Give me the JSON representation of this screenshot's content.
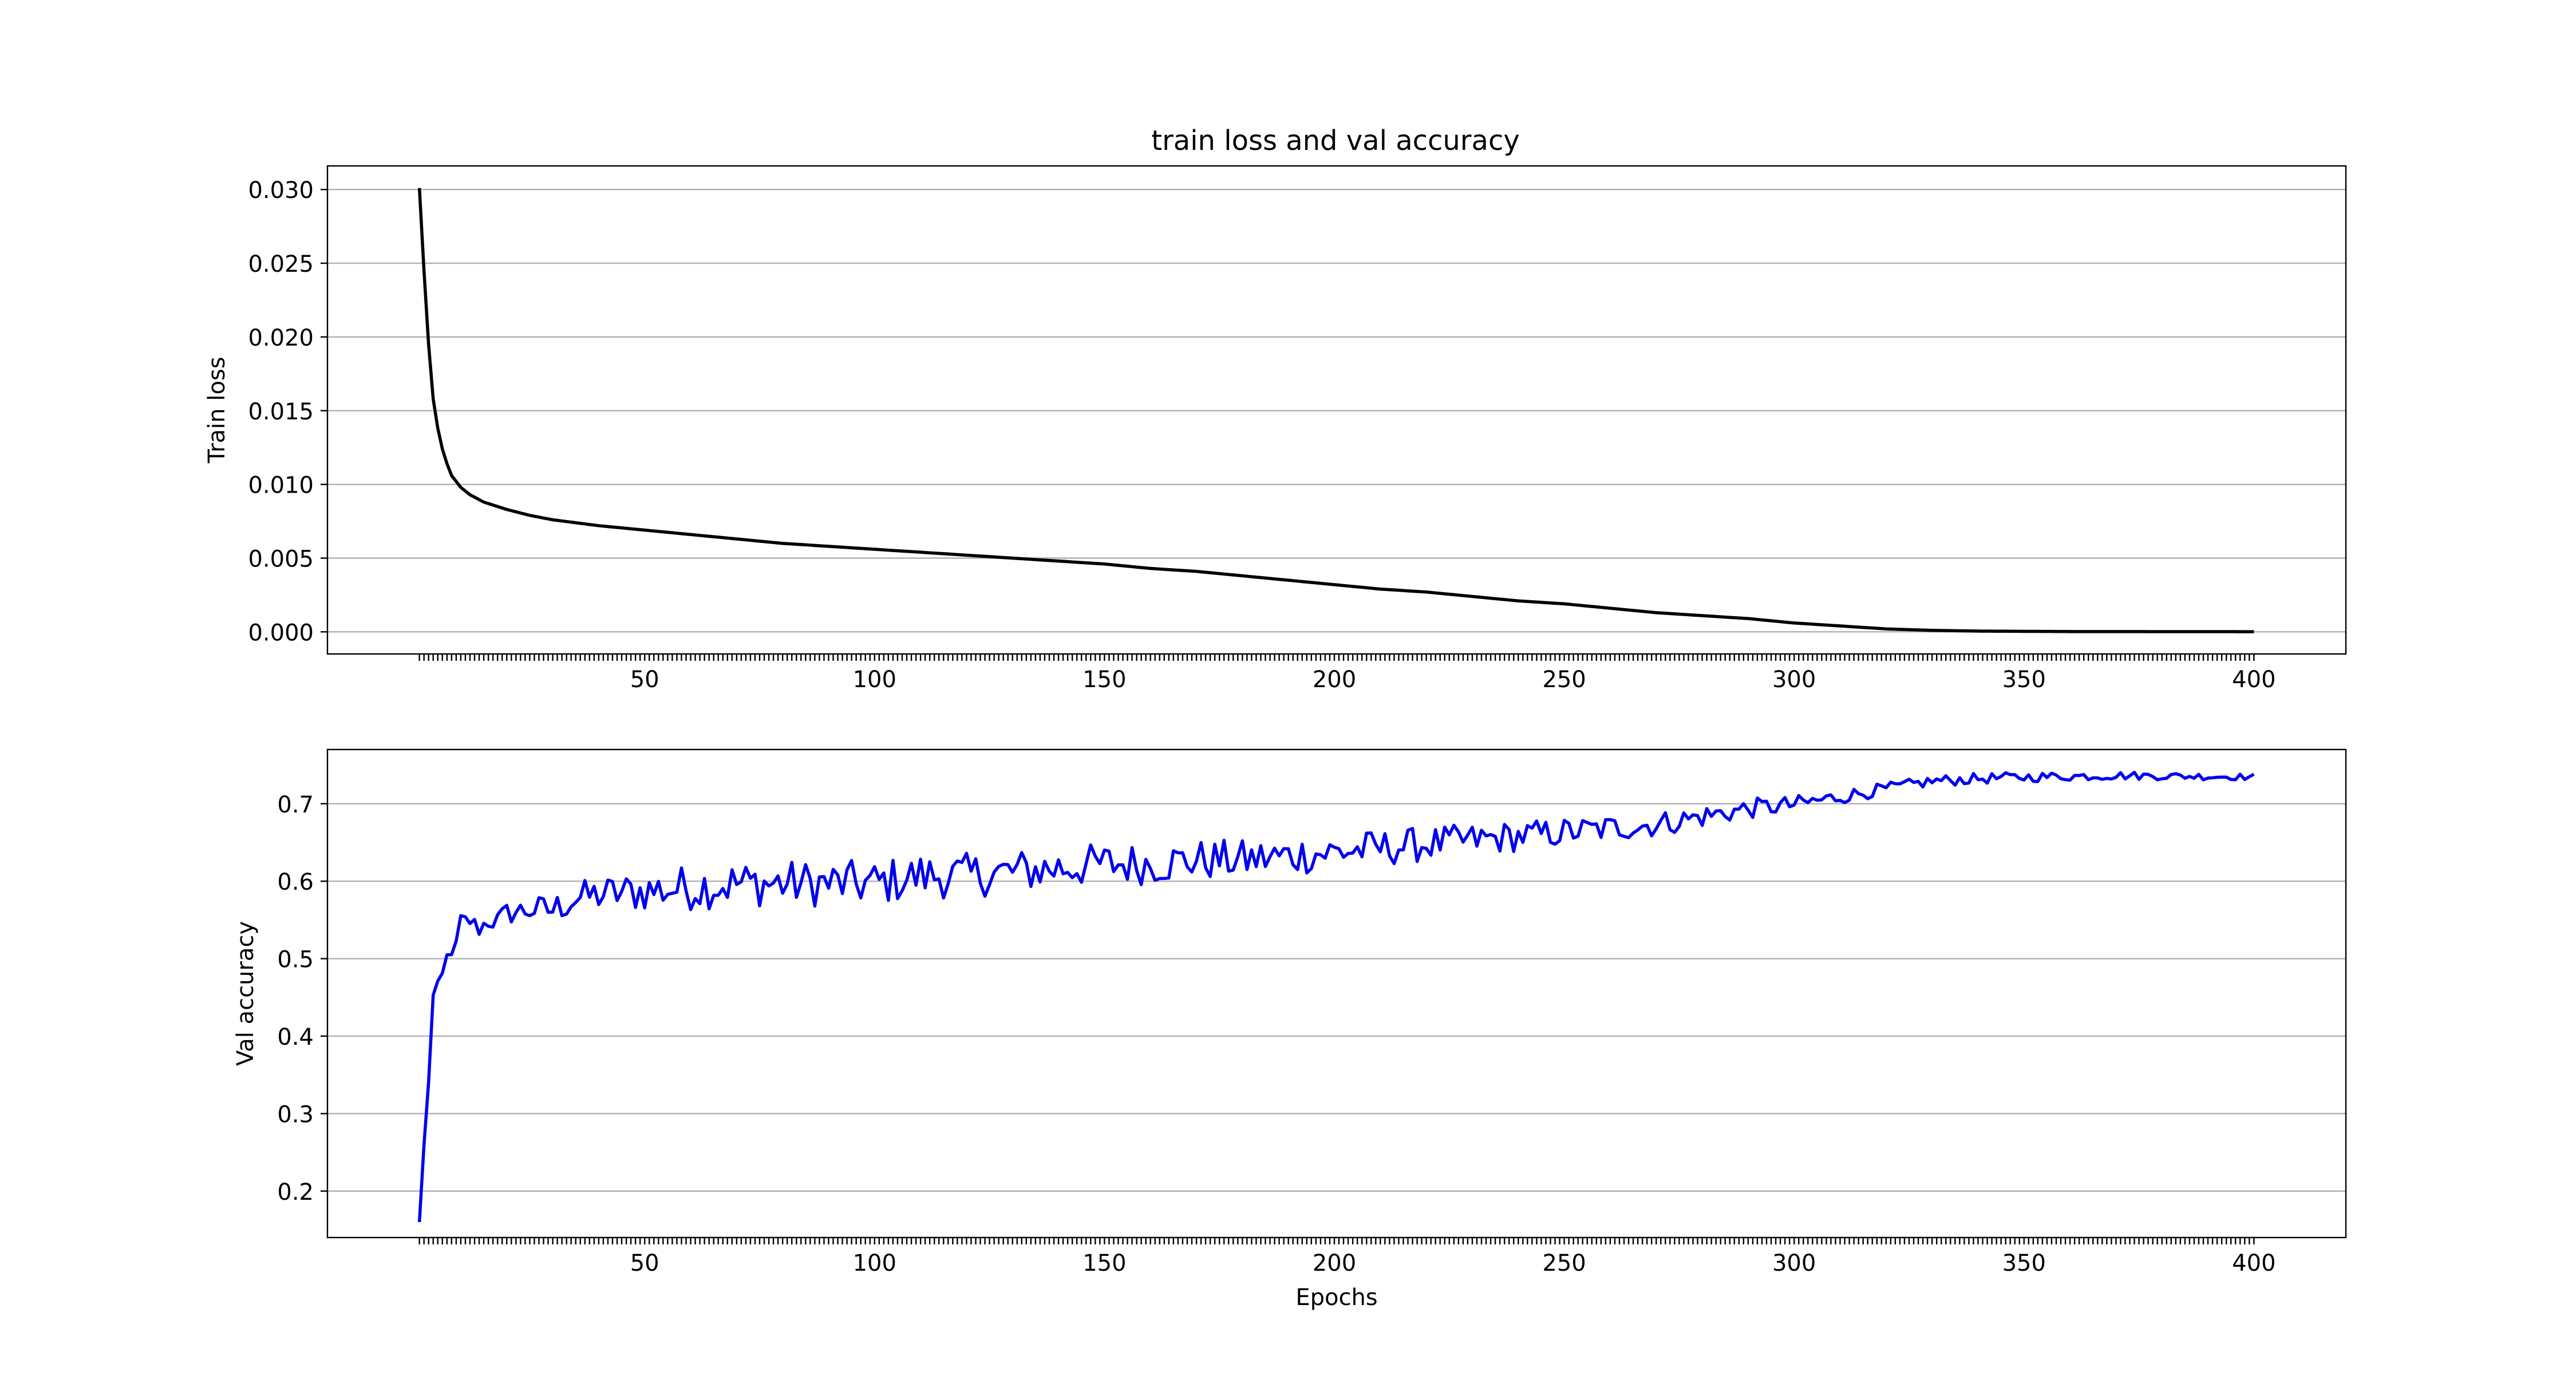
{
  "title": "train loss and val accuracy",
  "chart_data": [
    {
      "type": "line",
      "ylabel": "Train loss",
      "xlabel": "",
      "xlim": [
        -19,
        420
      ],
      "ylim": [
        -0.0015,
        0.0316
      ],
      "x_ticks": [
        50,
        100,
        150,
        200,
        250,
        300,
        350,
        400
      ],
      "x_tick_labels": [
        "50",
        "100",
        "150",
        "200",
        "250",
        "300",
        "350",
        "400"
      ],
      "y_ticks": [
        0.0,
        0.005,
        0.01,
        0.015,
        0.02,
        0.025,
        0.03
      ],
      "y_tick_labels": [
        "0.000",
        "0.005",
        "0.010",
        "0.015",
        "0.020",
        "0.025",
        "0.030"
      ],
      "grid": "horizontal",
      "series": [
        {
          "color": "#000000",
          "x_start": 1,
          "x_end": 400,
          "points": [
            [
              1,
              0.0301
            ],
            [
              2,
              0.0245
            ],
            [
              3,
              0.0195
            ],
            [
              4,
              0.0158
            ],
            [
              5,
              0.0138
            ],
            [
              6,
              0.0124
            ],
            [
              7,
              0.0114
            ],
            [
              8,
              0.0106
            ],
            [
              10,
              0.0098
            ],
            [
              12,
              0.0093
            ],
            [
              15,
              0.0088
            ],
            [
              20,
              0.0083
            ],
            [
              25,
              0.0079
            ],
            [
              30,
              0.0076
            ],
            [
              35,
              0.0074
            ],
            [
              40,
              0.0072
            ],
            [
              50,
              0.0069
            ],
            [
              60,
              0.0066
            ],
            [
              70,
              0.0063
            ],
            [
              80,
              0.006
            ],
            [
              90,
              0.0058
            ],
            [
              100,
              0.0056
            ],
            [
              110,
              0.0054
            ],
            [
              120,
              0.0052
            ],
            [
              130,
              0.005
            ],
            [
              140,
              0.0048
            ],
            [
              150,
              0.0046
            ],
            [
              160,
              0.0043
            ],
            [
              170,
              0.0041
            ],
            [
              180,
              0.0038
            ],
            [
              190,
              0.0035
            ],
            [
              200,
              0.0032
            ],
            [
              210,
              0.0029
            ],
            [
              220,
              0.0027
            ],
            [
              230,
              0.0024
            ],
            [
              240,
              0.0021
            ],
            [
              250,
              0.0019
            ],
            [
              260,
              0.0016
            ],
            [
              270,
              0.0013
            ],
            [
              280,
              0.0011
            ],
            [
              290,
              0.0009
            ],
            [
              300,
              0.0006
            ],
            [
              310,
              0.0004
            ],
            [
              320,
              0.0002
            ],
            [
              330,
              0.0001
            ],
            [
              340,
              5e-05
            ],
            [
              360,
              2e-05
            ],
            [
              400,
              1e-05
            ]
          ]
        }
      ]
    },
    {
      "type": "line",
      "ylabel": "Val accuracy",
      "xlabel": "Epochs",
      "xlim": [
        -19,
        420
      ],
      "ylim": [
        0.14,
        0.77
      ],
      "x_ticks": [
        50,
        100,
        150,
        200,
        250,
        300,
        350,
        400
      ],
      "x_tick_labels": [
        "50",
        "100",
        "150",
        "200",
        "250",
        "300",
        "350",
        "400"
      ],
      "y_ticks": [
        0.2,
        0.3,
        0.4,
        0.5,
        0.6,
        0.7
      ],
      "y_tick_labels": [
        "0.2",
        "0.3",
        "0.4",
        "0.5",
        "0.6",
        "0.7"
      ],
      "grid": "horizontal",
      "series": [
        {
          "color": "#0000ee",
          "x_start": 1,
          "x_end": 400,
          "points": [
            [
              1,
              0.16
            ],
            [
              2,
              0.26
            ],
            [
              3,
              0.34
            ],
            [
              4,
              0.45
            ],
            [
              5,
              0.47
            ],
            [
              6,
              0.48
            ],
            [
              7,
              0.51
            ],
            [
              8,
              0.5
            ],
            [
              9,
              0.52
            ],
            [
              10,
              0.55
            ],
            [
              12,
              0.55
            ],
            [
              14,
              0.54
            ],
            [
              16,
              0.55
            ],
            [
              18,
              0.55
            ],
            [
              20,
              0.56
            ],
            [
              25,
              0.565
            ],
            [
              30,
              0.565
            ],
            [
              35,
              0.58
            ],
            [
              40,
              0.585
            ],
            [
              50,
              0.59
            ],
            [
              60,
              0.595
            ],
            [
              70,
              0.6
            ],
            [
              80,
              0.6
            ],
            [
              90,
              0.6
            ],
            [
              100,
              0.6
            ],
            [
              110,
              0.61
            ],
            [
              120,
              0.61
            ],
            [
              130,
              0.615
            ],
            [
              140,
              0.62
            ],
            [
              150,
              0.625
            ],
            [
              160,
              0.625
            ],
            [
              170,
              0.63
            ],
            [
              180,
              0.63
            ],
            [
              190,
              0.635
            ],
            [
              200,
              0.64
            ],
            [
              210,
              0.645
            ],
            [
              220,
              0.65
            ],
            [
              230,
              0.655
            ],
            [
              240,
              0.66
            ],
            [
              250,
              0.665
            ],
            [
              260,
              0.67
            ],
            [
              270,
              0.675
            ],
            [
              280,
              0.685
            ],
            [
              290,
              0.695
            ],
            [
              300,
              0.7
            ],
            [
              310,
              0.71
            ],
            [
              320,
              0.72
            ],
            [
              330,
              0.73
            ],
            [
              340,
              0.733
            ],
            [
              350,
              0.735
            ],
            [
              370,
              0.737
            ],
            [
              400,
              0.735
            ]
          ],
          "noise_amplitude": [
            [
              1,
              0.0
            ],
            [
              10,
              0.01
            ],
            [
              30,
              0.02
            ],
            [
              60,
              0.03
            ],
            [
              100,
              0.03
            ],
            [
              200,
              0.025
            ],
            [
              280,
              0.015
            ],
            [
              320,
              0.008
            ],
            [
              400,
              0.004
            ]
          ]
        }
      ]
    }
  ]
}
